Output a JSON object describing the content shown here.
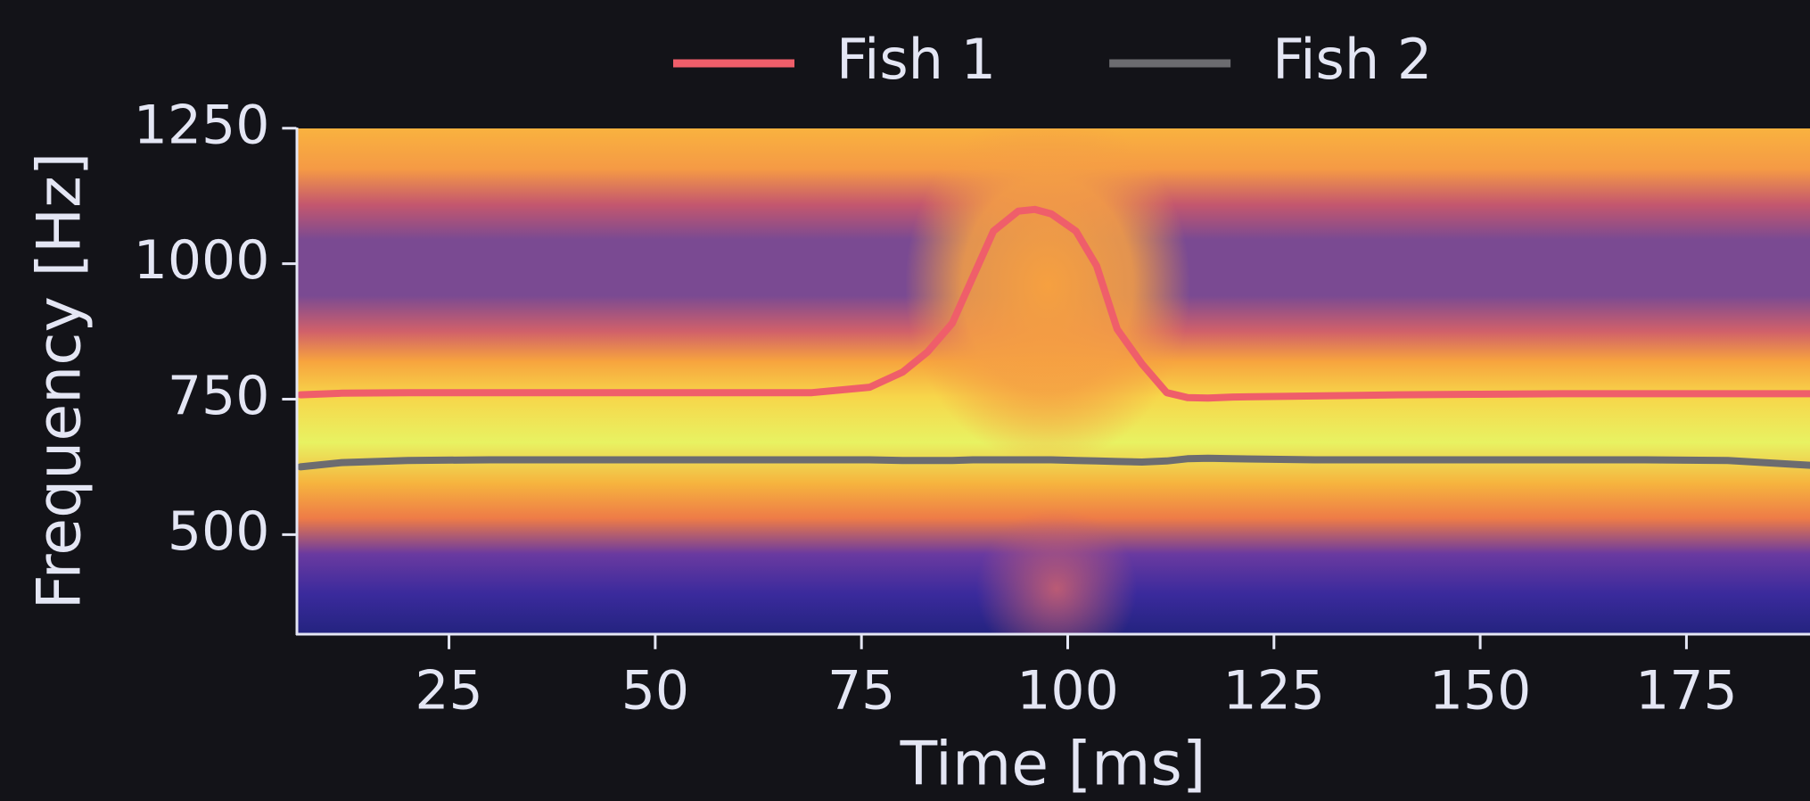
{
  "chart_data": {
    "type": "line",
    "xlabel": "Time [ms]",
    "ylabel": "Frequency [Hz]",
    "xlim": [
      6.5,
      190
    ],
    "ylim": [
      315,
      1250
    ],
    "xticks": [
      25,
      50,
      75,
      100,
      125,
      150,
      175
    ],
    "yticks": [
      500,
      750,
      1000,
      1250
    ],
    "legend": "upper center",
    "x": [
      7,
      12,
      20,
      30,
      40,
      50,
      60,
      69,
      76,
      80,
      83,
      86,
      88.5,
      91,
      94,
      96,
      98,
      101,
      103.5,
      106,
      109,
      112,
      114.5,
      117,
      120,
      130,
      140,
      150,
      160,
      170,
      180,
      190
    ],
    "series": [
      {
        "name": "Fish 1",
        "color": "#ef5e6a",
        "values": [
          758,
          761,
          762,
          762,
          762,
          762,
          762,
          762,
          772,
          800,
          837,
          890,
          975,
          1060,
          1097,
          1100,
          1092,
          1060,
          996,
          879,
          815,
          762,
          753,
          752,
          754,
          756,
          758,
          759,
          760,
          760,
          760,
          760
        ]
      },
      {
        "name": "Fish 2",
        "color": "#6c6c70",
        "values": [
          625,
          633,
          637,
          638,
          638,
          638,
          638,
          638,
          638,
          637,
          637,
          637,
          638,
          638,
          638,
          638,
          638,
          637,
          636,
          635,
          634,
          636,
          640,
          641,
          640,
          638,
          638,
          638,
          638,
          638,
          637,
          628
        ]
      }
    ]
  }
}
